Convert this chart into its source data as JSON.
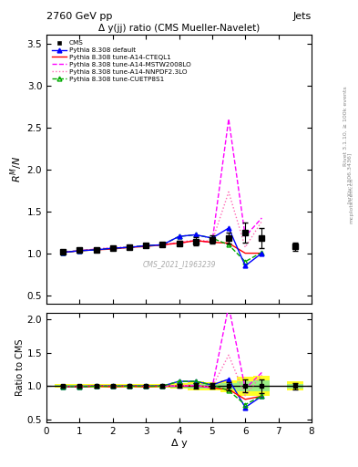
{
  "title_main": "Δ y(jj) ratio (CMS Mueller-Navelet)",
  "header_left": "2760 GeV pp",
  "header_right": "Jets",
  "ylabel_main": "R^{M}/N",
  "ylabel_ratio": "Ratio to CMS",
  "xlabel": "Δ y",
  "watermark": "CMS_2021_I1963239",
  "rivet_label": "Rivet 3.1.10, ≥ 100k events",
  "arxiv_label": "[arXiv:1306.3436]",
  "mcplots_label": "mcplots.cern.ch",
  "cms_x": [
    0.5,
    1.0,
    1.5,
    2.0,
    2.5,
    3.0,
    3.5,
    4.0,
    4.5,
    5.0,
    5.5,
    6.0,
    6.5,
    7.5
  ],
  "cms_y": [
    1.02,
    1.04,
    1.04,
    1.06,
    1.07,
    1.09,
    1.1,
    1.12,
    1.14,
    1.16,
    1.18,
    1.25,
    1.18,
    1.08
  ],
  "cms_yerr": [
    0.02,
    0.02,
    0.02,
    0.02,
    0.02,
    0.02,
    0.02,
    0.03,
    0.05,
    0.05,
    0.07,
    0.12,
    0.12,
    0.05
  ],
  "py_default_x": [
    0.5,
    1.0,
    1.5,
    2.0,
    2.5,
    3.0,
    3.5,
    4.0,
    4.5,
    5.0,
    5.5,
    6.0,
    6.5
  ],
  "py_default_y": [
    1.01,
    1.03,
    1.04,
    1.06,
    1.07,
    1.09,
    1.1,
    1.2,
    1.22,
    1.18,
    1.3,
    0.85,
    1.0
  ],
  "py_cteql1_x": [
    0.5,
    1.0,
    1.5,
    2.0,
    2.5,
    3.0,
    3.5,
    4.0,
    4.5,
    5.0,
    5.5,
    6.0,
    6.5
  ],
  "py_cteql1_y": [
    1.01,
    1.03,
    1.04,
    1.05,
    1.07,
    1.08,
    1.1,
    1.12,
    1.15,
    1.13,
    1.12,
    1.0,
    1.0
  ],
  "py_mstw_x": [
    0.5,
    1.0,
    1.5,
    2.0,
    2.5,
    3.0,
    3.5,
    4.0,
    4.5,
    5.0,
    5.5,
    6.0,
    6.5
  ],
  "py_mstw_y": [
    1.01,
    1.03,
    1.05,
    1.06,
    1.07,
    1.09,
    1.1,
    1.12,
    1.15,
    1.13,
    2.6,
    1.2,
    1.42
  ],
  "py_nnpdf_x": [
    0.5,
    1.0,
    1.5,
    2.0,
    2.5,
    3.0,
    3.5,
    4.0,
    4.5,
    5.0,
    5.5,
    6.0,
    6.5
  ],
  "py_nnpdf_y": [
    1.01,
    1.03,
    1.05,
    1.07,
    1.07,
    1.09,
    1.1,
    1.13,
    1.16,
    1.14,
    1.73,
    1.07,
    1.38
  ],
  "py_cuetp_x": [
    0.5,
    1.0,
    1.5,
    2.0,
    2.5,
    3.0,
    3.5,
    4.0,
    4.5,
    5.0,
    5.5,
    6.0,
    6.5
  ],
  "py_cuetp_y": [
    1.01,
    1.03,
    1.04,
    1.06,
    1.07,
    1.09,
    1.1,
    1.2,
    1.22,
    1.18,
    1.1,
    0.9,
    1.01
  ],
  "cms_color": "black",
  "py_default_color": "blue",
  "py_cteql1_color": "red",
  "py_mstw_color": "#ff00ff",
  "py_nnpdf_color": "#ff69b4",
  "py_cuetp_color": "#00aa00",
  "xlim": [
    0,
    8
  ],
  "ylim_main": [
    0.4,
    3.6
  ],
  "ylim_ratio": [
    0.45,
    2.1
  ],
  "yticks_main": [
    0.5,
    1.0,
    1.5,
    2.0,
    2.5,
    3.0,
    3.5
  ],
  "yticks_ratio": [
    0.5,
    1.0,
    1.5,
    2.0
  ],
  "xticks": [
    0,
    1,
    2,
    3,
    4,
    5,
    6,
    7,
    8
  ]
}
